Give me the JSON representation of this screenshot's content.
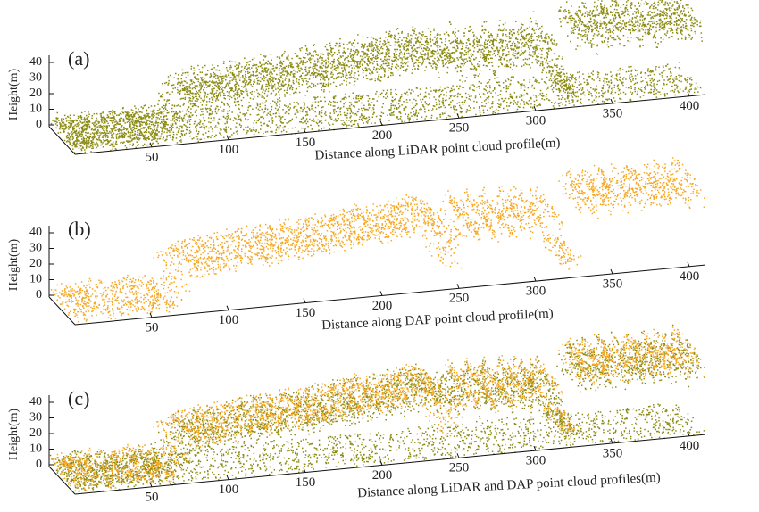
{
  "panels": [
    {
      "label": "(a)",
      "y_title": "Height(m)",
      "x_title": "Distance along LiDAR point cloud profile(m)",
      "yticks": [
        0,
        10,
        20,
        30,
        40
      ],
      "xticks": [
        50,
        100,
        150,
        200,
        250,
        300,
        350,
        400
      ]
    },
    {
      "label": "(b)",
      "y_title": "Height(m)",
      "x_title": "Distance along DAP point cloud profile(m)",
      "yticks": [
        0,
        10,
        20,
        30,
        40
      ],
      "xticks": [
        50,
        100,
        150,
        200,
        250,
        300,
        350,
        400
      ]
    },
    {
      "label": "(c)",
      "y_title": "Height(m)",
      "x_title": "Distance along LiDAR and DAP point cloud profiles(m)",
      "yticks": [
        0,
        10,
        20,
        30,
        40
      ],
      "xticks": [
        50,
        100,
        150,
        200,
        250,
        300,
        350,
        400
      ]
    }
  ]
}
